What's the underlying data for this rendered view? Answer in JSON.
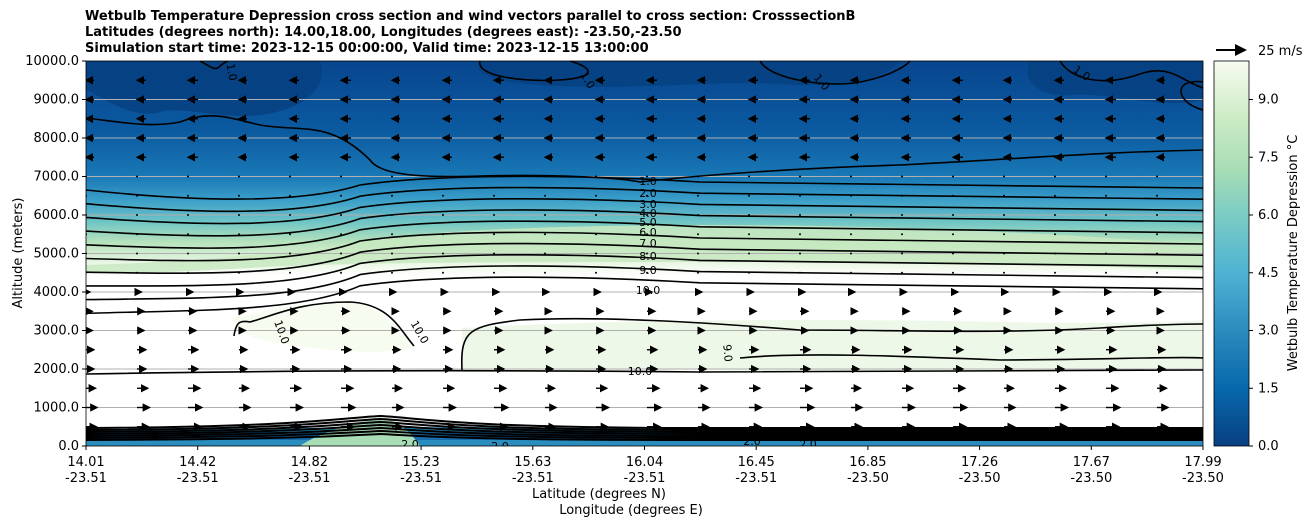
{
  "chart_data": {
    "type": "contourf",
    "title_lines": [
      "Wetbulb Temperature Depression cross section and wind vectors parallel to cross section: CrosssectionB",
      "Latitudes (degrees north): 14.00,18.00, Longitudes (degrees east): -23.50,-23.50",
      "Simulation start time: 2023-12-15 00:00:00, Valid time: 2023-12-15 13:00:00"
    ],
    "xlabel_lat": "Latitude (degrees N)",
    "xlabel_lon": "Longitude (degrees E)",
    "ylabel": "Altitude (meters)",
    "ylim": [
      0,
      10000
    ],
    "yticks": [
      "0.0",
      "1000.0",
      "2000.0",
      "3000.0",
      "4000.0",
      "5000.0",
      "6000.0",
      "7000.0",
      "8000.0",
      "9000.0",
      "10000.0"
    ],
    "xticks": [
      {
        "lat": "14.01",
        "lon": "-23.51"
      },
      {
        "lat": "14.42",
        "lon": "-23.51"
      },
      {
        "lat": "14.82",
        "lon": "-23.51"
      },
      {
        "lat": "15.23",
        "lon": "-23.51"
      },
      {
        "lat": "15.63",
        "lon": "-23.51"
      },
      {
        "lat": "16.04",
        "lon": "-23.51"
      },
      {
        "lat": "16.45",
        "lon": "-23.51"
      },
      {
        "lat": "16.85",
        "lon": "-23.50"
      },
      {
        "lat": "17.26",
        "lon": "-23.50"
      },
      {
        "lat": "17.67",
        "lon": "-23.50"
      },
      {
        "lat": "17.99",
        "lon": "-23.50"
      }
    ],
    "grid": "horizontal",
    "colorbar": {
      "label": "Wetbulb Temperature Depression °C",
      "range": [
        0,
        10
      ],
      "ticks": [
        "0.0",
        "1.5",
        "3.0",
        "4.5",
        "6.0",
        "7.5",
        "9.0"
      ],
      "colormap": "GnBu_r"
    },
    "quiver_key": "25 m/s",
    "contour_levels": [
      1.0,
      2.0,
      3.0,
      4.0,
      5.0,
      6.0,
      7.0,
      8.0,
      9.0,
      10.0
    ],
    "contour_labels": [
      "1.0",
      "2.0",
      "3.0",
      "4.0",
      "5.0",
      "6.0",
      "7.0",
      "8.0",
      "9.0",
      "10.0",
      "10.0",
      "10.0",
      "10.0",
      "9.0",
      "1.0",
      "1.0",
      "1.0",
      "1.0",
      "2.0",
      "2.0",
      "2.0",
      "2.0"
    ]
  }
}
